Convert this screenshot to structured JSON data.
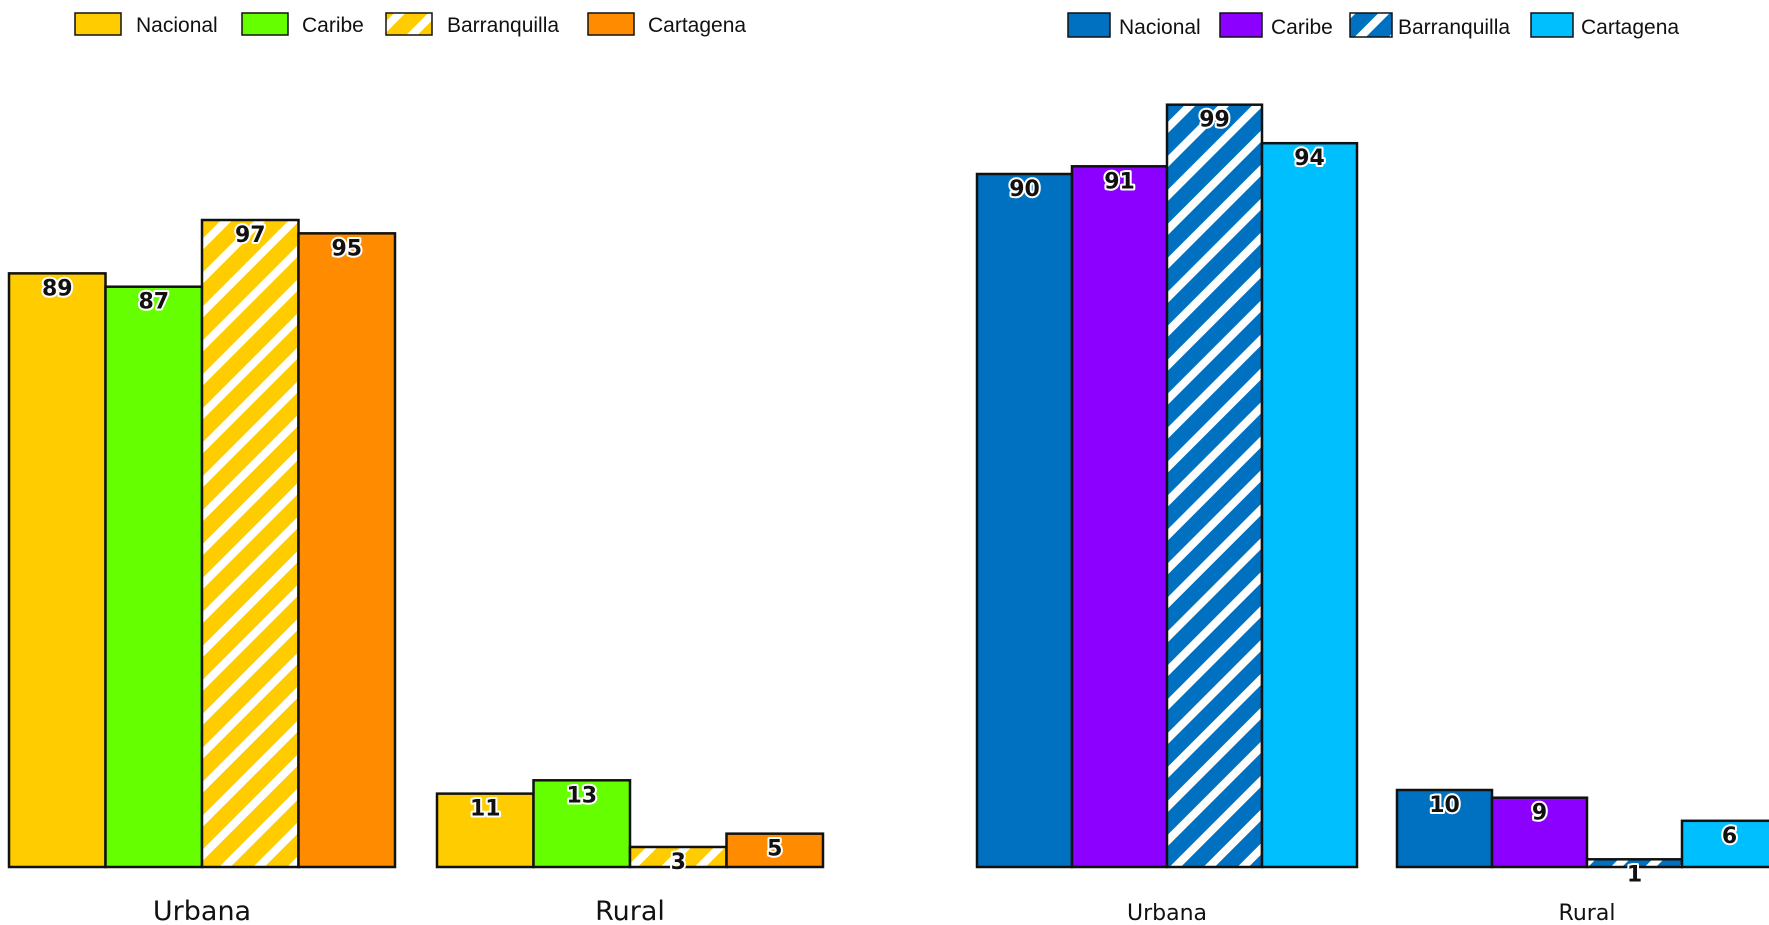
{
  "chart_data": [
    {
      "type": "bar",
      "categories": [
        "Urbana",
        "Rural"
      ],
      "series": [
        {
          "name": "Nacional",
          "values": [
            89,
            11
          ],
          "color": "#FFCC00",
          "hatched": false
        },
        {
          "name": "Caribe",
          "values": [
            87,
            13
          ],
          "color": "#66FF00",
          "hatched": false
        },
        {
          "name": "Barranquilla",
          "values": [
            97,
            3
          ],
          "color": "#FFCC00",
          "hatched": true
        },
        {
          "name": "Cartagena",
          "values": [
            95,
            5
          ],
          "color": "#FF8C00",
          "hatched": false
        }
      ],
      "legend_position": "top",
      "grid": false,
      "ylim": [
        0,
        100
      ]
    },
    {
      "type": "bar",
      "categories": [
        "Urbana",
        "Rural"
      ],
      "series": [
        {
          "name": "Nacional",
          "values": [
            90,
            10
          ],
          "color": "#0070C0",
          "hatched": false
        },
        {
          "name": "Caribe",
          "values": [
            91,
            9
          ],
          "color": "#8B00FF",
          "hatched": false
        },
        {
          "name": "Barranquilla",
          "values": [
            99,
            1
          ],
          "color": "#0070C0",
          "hatched": true
        },
        {
          "name": "Cartagena",
          "values": [
            94,
            6
          ],
          "color": "#00BFFF",
          "hatched": false
        }
      ],
      "legend_position": "top",
      "grid": false,
      "ylim": [
        0,
        100
      ]
    }
  ]
}
